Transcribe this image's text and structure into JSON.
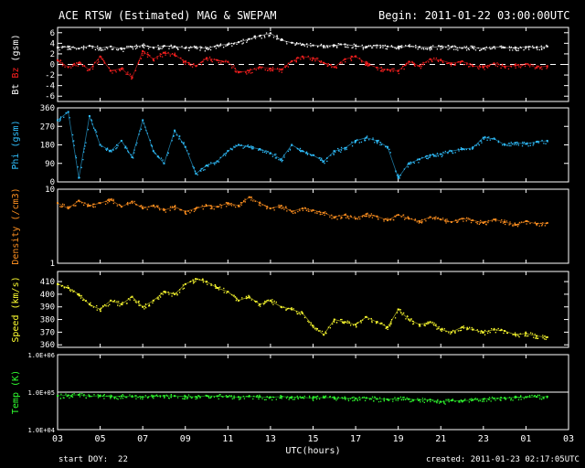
{
  "header": {
    "title": "ACE RTSW (Estimated) MAG & SWEPAM",
    "begin": "Begin: 2011-01-22 03:00:00UTC"
  },
  "footer": {
    "start_doy": "start DOY:  22",
    "created": "created: 2011-01-23 02:17:05UTC"
  },
  "chart_data": {
    "type": "scatter",
    "x_axis": {
      "label": "UTC(hours)",
      "range": [
        3,
        27
      ],
      "ticks": [
        "03",
        "05",
        "07",
        "09",
        "11",
        "13",
        "15",
        "17",
        "19",
        "21",
        "23",
        "01",
        "03"
      ]
    },
    "panels": [
      {
        "id": "mag",
        "ylabel_parts": [
          {
            "text": "Bt",
            "color": "#ffffff"
          },
          {
            "text": " ",
            "color": "#ffffff"
          },
          {
            "text": "Bz",
            "color": "#ff2020"
          },
          {
            "text": " (gsm)",
            "color": "#ffffff"
          }
        ],
        "ylim": [
          -7,
          7
        ],
        "yticks": [
          -6,
          -4,
          -2,
          0,
          2,
          4,
          6
        ],
        "ytick_labels": [
          "-6",
          "-4",
          "-2",
          "0",
          "2",
          "4",
          "6"
        ],
        "zero_line": true,
        "series": [
          {
            "name": "Bt",
            "color": "#ffffff",
            "x": [
              3,
              3.5,
              4,
              4.5,
              5,
              5.5,
              6,
              6.5,
              7,
              7.5,
              8,
              8.5,
              9,
              9.5,
              10,
              10.5,
              11,
              11.5,
              12,
              12.5,
              13,
              13.5,
              14,
              14.5,
              15,
              15.5,
              16,
              16.5,
              17,
              17.5,
              18,
              18.5,
              19,
              19.5,
              20,
              20.5,
              21,
              21.5,
              22,
              22.5,
              23,
              23.5,
              24,
              24.5,
              25,
              25.5,
              26
            ],
            "y": [
              3.2,
              3.3,
              3.0,
              3.5,
              3.1,
              3.4,
              2.9,
              3.3,
              3.6,
              3.2,
              3.5,
              3.4,
              3.1,
              3.3,
              3.0,
              3.6,
              3.8,
              4.2,
              4.8,
              5.4,
              5.9,
              4.6,
              4.1,
              3.8,
              3.6,
              3.5,
              3.6,
              3.8,
              3.5,
              3.3,
              3.6,
              3.4,
              3.2,
              3.5,
              3.3,
              3.2,
              3.4,
              3.3,
              3.1,
              3.2,
              3.0,
              3.3,
              3.2,
              3.1,
              3.3,
              3.2,
              3.4
            ]
          },
          {
            "name": "Bz",
            "color": "#ff2020",
            "x": [
              3,
              3.5,
              4,
              4.5,
              5,
              5.5,
              6,
              6.5,
              7,
              7.5,
              8,
              8.5,
              9,
              9.5,
              10,
              10.5,
              11,
              11.5,
              12,
              12.5,
              13,
              13.5,
              14,
              14.5,
              15,
              15.5,
              16,
              16.5,
              17,
              17.5,
              18,
              18.5,
              19,
              19.5,
              20,
              20.5,
              21,
              21.5,
              22,
              22.5,
              23,
              23.5,
              24,
              24.5,
              25,
              25.5,
              26
            ],
            "y": [
              0.8,
              -0.5,
              0.3,
              -1.0,
              1.5,
              -1.2,
              -0.8,
              -2.5,
              2.5,
              1.0,
              2.2,
              1.8,
              0.5,
              -0.3,
              1.2,
              0.8,
              0.5,
              -1.5,
              -1.2,
              -0.5,
              -0.8,
              -1.0,
              0.6,
              1.5,
              1.2,
              0.3,
              -0.5,
              1.0,
              1.5,
              0.2,
              -0.6,
              -1.0,
              -1.2,
              0.5,
              -0.3,
              1.0,
              0.8,
              0.2,
              0.6,
              -0.3,
              -0.5,
              0.2,
              -0.4,
              -0.2,
              0.1,
              -0.6,
              -0.3
            ]
          }
        ]
      },
      {
        "id": "phi",
        "ylabel_parts": [
          {
            "text": "Phi (gsm)",
            "color": "#30c0ff"
          }
        ],
        "ylim": [
          0,
          360
        ],
        "yticks": [
          0,
          90,
          180,
          270,
          360
        ],
        "ytick_labels": [
          "0",
          "90",
          "180",
          "270",
          "360"
        ],
        "series": [
          {
            "name": "Phi",
            "color": "#30c0ff",
            "x": [
              3,
              3.5,
              4,
              4.5,
              5,
              5.5,
              6,
              6.5,
              7,
              7.5,
              8,
              8.5,
              9,
              9.5,
              10,
              10.5,
              11,
              11.5,
              12,
              12.5,
              13,
              13.5,
              14,
              14.5,
              15,
              15.5,
              16,
              16.5,
              17,
              17.5,
              18,
              18.5,
              19,
              19.5,
              20,
              20.5,
              21,
              21.5,
              22,
              22.5,
              23,
              23.5,
              24,
              24.5,
              25,
              25.5,
              26
            ],
            "y": [
              300,
              340,
              20,
              320,
              180,
              150,
              200,
              120,
              300,
              150,
              90,
              250,
              170,
              40,
              80,
              100,
              150,
              180,
              170,
              160,
              140,
              110,
              180,
              150,
              130,
              100,
              150,
              165,
              200,
              215,
              200,
              170,
              20,
              90,
              110,
              130,
              135,
              150,
              160,
              165,
              215,
              210,
              180,
              190,
              185,
              195,
              200
            ]
          }
        ]
      },
      {
        "id": "density",
        "ylabel_parts": [
          {
            "text": "Density (/cm3)",
            "color": "#ff9020"
          }
        ],
        "log": true,
        "ylim": [
          1,
          10
        ],
        "yticks": [
          1,
          10
        ],
        "ytick_labels": [
          "1",
          "10"
        ],
        "series": [
          {
            "name": "Density",
            "color": "#ff9020",
            "x": [
              3,
              3.5,
              4,
              4.5,
              5,
              5.5,
              6,
              6.5,
              7,
              7.5,
              8,
              8.5,
              9,
              9.5,
              10,
              10.5,
              11,
              11.5,
              12,
              12.5,
              13,
              13.5,
              14,
              14.5,
              15,
              15.5,
              16,
              16.5,
              17,
              17.5,
              18,
              18.5,
              19,
              19.5,
              20,
              20.5,
              21,
              21.5,
              22,
              22.5,
              23,
              23.5,
              24,
              24.5,
              25,
              25.5,
              26
            ],
            "y": [
              6.5,
              5.5,
              7.0,
              6.0,
              6.5,
              7.2,
              5.8,
              6.8,
              5.5,
              6.0,
              5.2,
              5.8,
              5.0,
              5.5,
              6.0,
              5.8,
              6.5,
              6.0,
              7.8,
              6.5,
              5.5,
              6.0,
              5.0,
              5.5,
              5.2,
              4.8,
              4.2,
              4.5,
              4.0,
              4.6,
              4.3,
              3.8,
              4.5,
              4.0,
              3.7,
              4.2,
              3.9,
              3.6,
              4.0,
              3.8,
              3.5,
              3.9,
              3.6,
              3.3,
              3.7,
              3.4,
              3.5
            ]
          }
        ]
      },
      {
        "id": "speed",
        "ylabel_parts": [
          {
            "text": "Speed (km/s)",
            "color": "#ffff30"
          }
        ],
        "ylim": [
          358,
          418
        ],
        "yticks": [
          360,
          370,
          380,
          390,
          400,
          410
        ],
        "ytick_labels": [
          "360",
          "370",
          "380",
          "390",
          "400",
          "410"
        ],
        "series": [
          {
            "name": "Speed",
            "color": "#ffff30",
            "x": [
              3,
              3.5,
              4,
              4.5,
              5,
              5.5,
              6,
              6.5,
              7,
              7.5,
              8,
              8.5,
              9,
              9.5,
              10,
              10.5,
              11,
              11.5,
              12,
              12.5,
              13,
              13.5,
              14,
              14.5,
              15,
              15.5,
              16,
              16.5,
              17,
              17.5,
              18,
              18.5,
              19,
              19.5,
              20,
              20.5,
              21,
              21.5,
              22,
              22.5,
              23,
              23.5,
              24,
              24.5,
              25,
              25.5,
              26
            ],
            "y": [
              408,
              405,
              400,
              392,
              388,
              395,
              392,
              398,
              390,
              395,
              402,
              400,
              408,
              412,
              410,
              405,
              402,
              395,
              398,
              392,
              395,
              390,
              388,
              385,
              375,
              368,
              380,
              378,
              376,
              382,
              378,
              374,
              388,
              380,
              376,
              378,
              372,
              370,
              374,
              372,
              370,
              372,
              371,
              368,
              369,
              367,
              366
            ]
          }
        ]
      },
      {
        "id": "temp",
        "ylabel_parts": [
          {
            "text": "Temp (K)",
            "color": "#30ff30"
          }
        ],
        "log": true,
        "ylim": [
          10000,
          1000000
        ],
        "yticks": [
          10000,
          100000,
          1000000
        ],
        "ytick_labels": [
          "1.0E+04",
          "1.0E+05",
          "1.0E+06"
        ],
        "ref_line": 100000,
        "series": [
          {
            "name": "Temp",
            "color": "#30ff30",
            "x": [
              3,
              3.5,
              4,
              4.5,
              5,
              5.5,
              6,
              6.5,
              7,
              7.5,
              8,
              8.5,
              9,
              9.5,
              10,
              10.5,
              11,
              11.5,
              12,
              12.5,
              13,
              13.5,
              14,
              14.5,
              15,
              15.5,
              16,
              16.5,
              17,
              17.5,
              18,
              18.5,
              19,
              19.5,
              20,
              20.5,
              21,
              21.5,
              22,
              22.5,
              23,
              23.5,
              24,
              24.5,
              25,
              25.5,
              26
            ],
            "y": [
              80000,
              82000,
              85000,
              78000,
              80000,
              75000,
              78000,
              76000,
              74000,
              78000,
              80000,
              79000,
              77000,
              75000,
              80000,
              78000,
              76000,
              74000,
              77000,
              75000,
              73000,
              76000,
              74000,
              72000,
              70000,
              72000,
              71000,
              69000,
              68000,
              70000,
              66000,
              64000,
              68000,
              65000,
              62000,
              63000,
              55000,
              60000,
              58000,
              62000,
              65000,
              68000,
              70000,
              72000,
              74000,
              75000,
              76000
            ]
          }
        ]
      }
    ]
  }
}
